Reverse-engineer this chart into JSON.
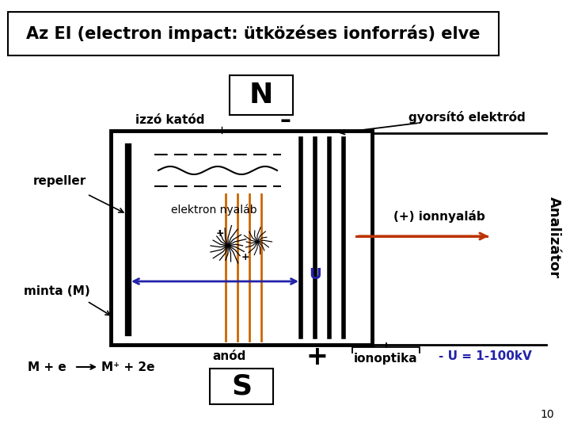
{
  "title": "Az EI (electron impact: ütközéses ionforrás) elve",
  "label_N": "N",
  "label_S": "S",
  "label_izzó_katód": "izzó katód",
  "label_gyorsító": "gyorsító elektród",
  "label_repeller": "repeller",
  "label_elektron_nyaláb": "elektron nyaláb",
  "label_ionnyaláb": "(+) ionnyaláb",
  "label_analizátor": "Analizátor",
  "label_minta": "minta (M)",
  "label_anód": "anód",
  "label_ionoptika": "ionoptika",
  "label_U": "U",
  "label_reaction": "M + e",
  "label_reaction2": "M⁺ + 2e",
  "label_voltage": "- U = 1-100kV",
  "label_minus": "–",
  "label_plus_sign": "+",
  "bg_color": "#ffffff",
  "box_color": "#000000",
  "blue_color": "#2222aa",
  "orange_color": "#bb3300",
  "title_fontsize": 15,
  "label_fontsize": 11,
  "small_fontsize": 10
}
